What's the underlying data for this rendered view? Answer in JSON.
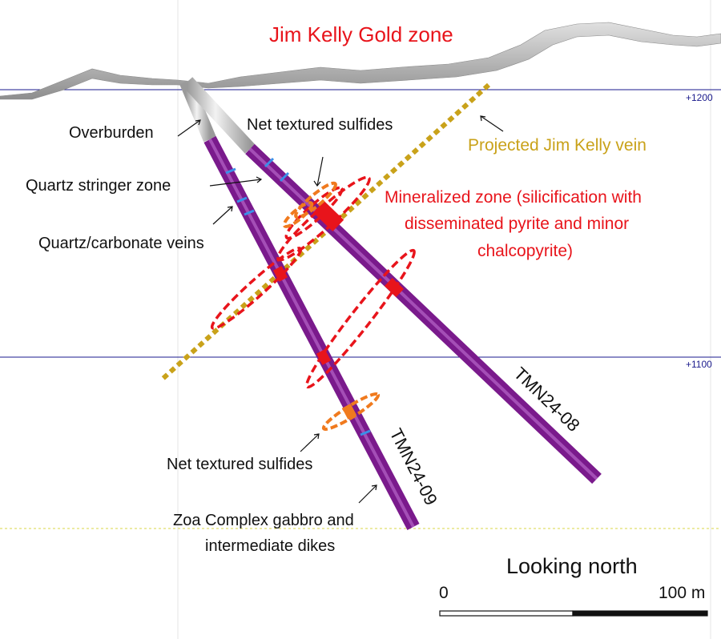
{
  "title": "Jim Kelly Gold zone",
  "elevations": {
    "upper": "+1200",
    "lower": "+1100"
  },
  "labels": {
    "overburden": "Overburden",
    "net_textured_upper": "Net textured sulfides",
    "quartz_stringer": "Quartz stringer zone",
    "quartz_carbonate": "Quartz/carbonate veins",
    "net_textured_lower": "Net textured sulfides",
    "zoa_line1": "Zoa Complex gabbro and",
    "zoa_line2": "intermediate dikes",
    "projected_vein": "Projected Jim Kelly vein",
    "mineralized_line1": "Mineralized zone (silicification with",
    "mineralized_line2": "disseminated pyrite and minor",
    "mineralized_line3": "chalcopyrite)"
  },
  "drillholes": [
    {
      "id": "TMN24-08"
    },
    {
      "id": "TMN24-09"
    }
  ],
  "orientation": "Looking north",
  "scale": {
    "start": "0",
    "end": "100 m"
  },
  "colors": {
    "title": "#e8141b",
    "mineralized": "#e8141b",
    "vein_projection": "#c9a21a",
    "sulfides": "#f07a1e",
    "drillhole": "#7a1a8c",
    "overburden": "#c8c8c8",
    "elevation_line": "#1a1a8c"
  }
}
